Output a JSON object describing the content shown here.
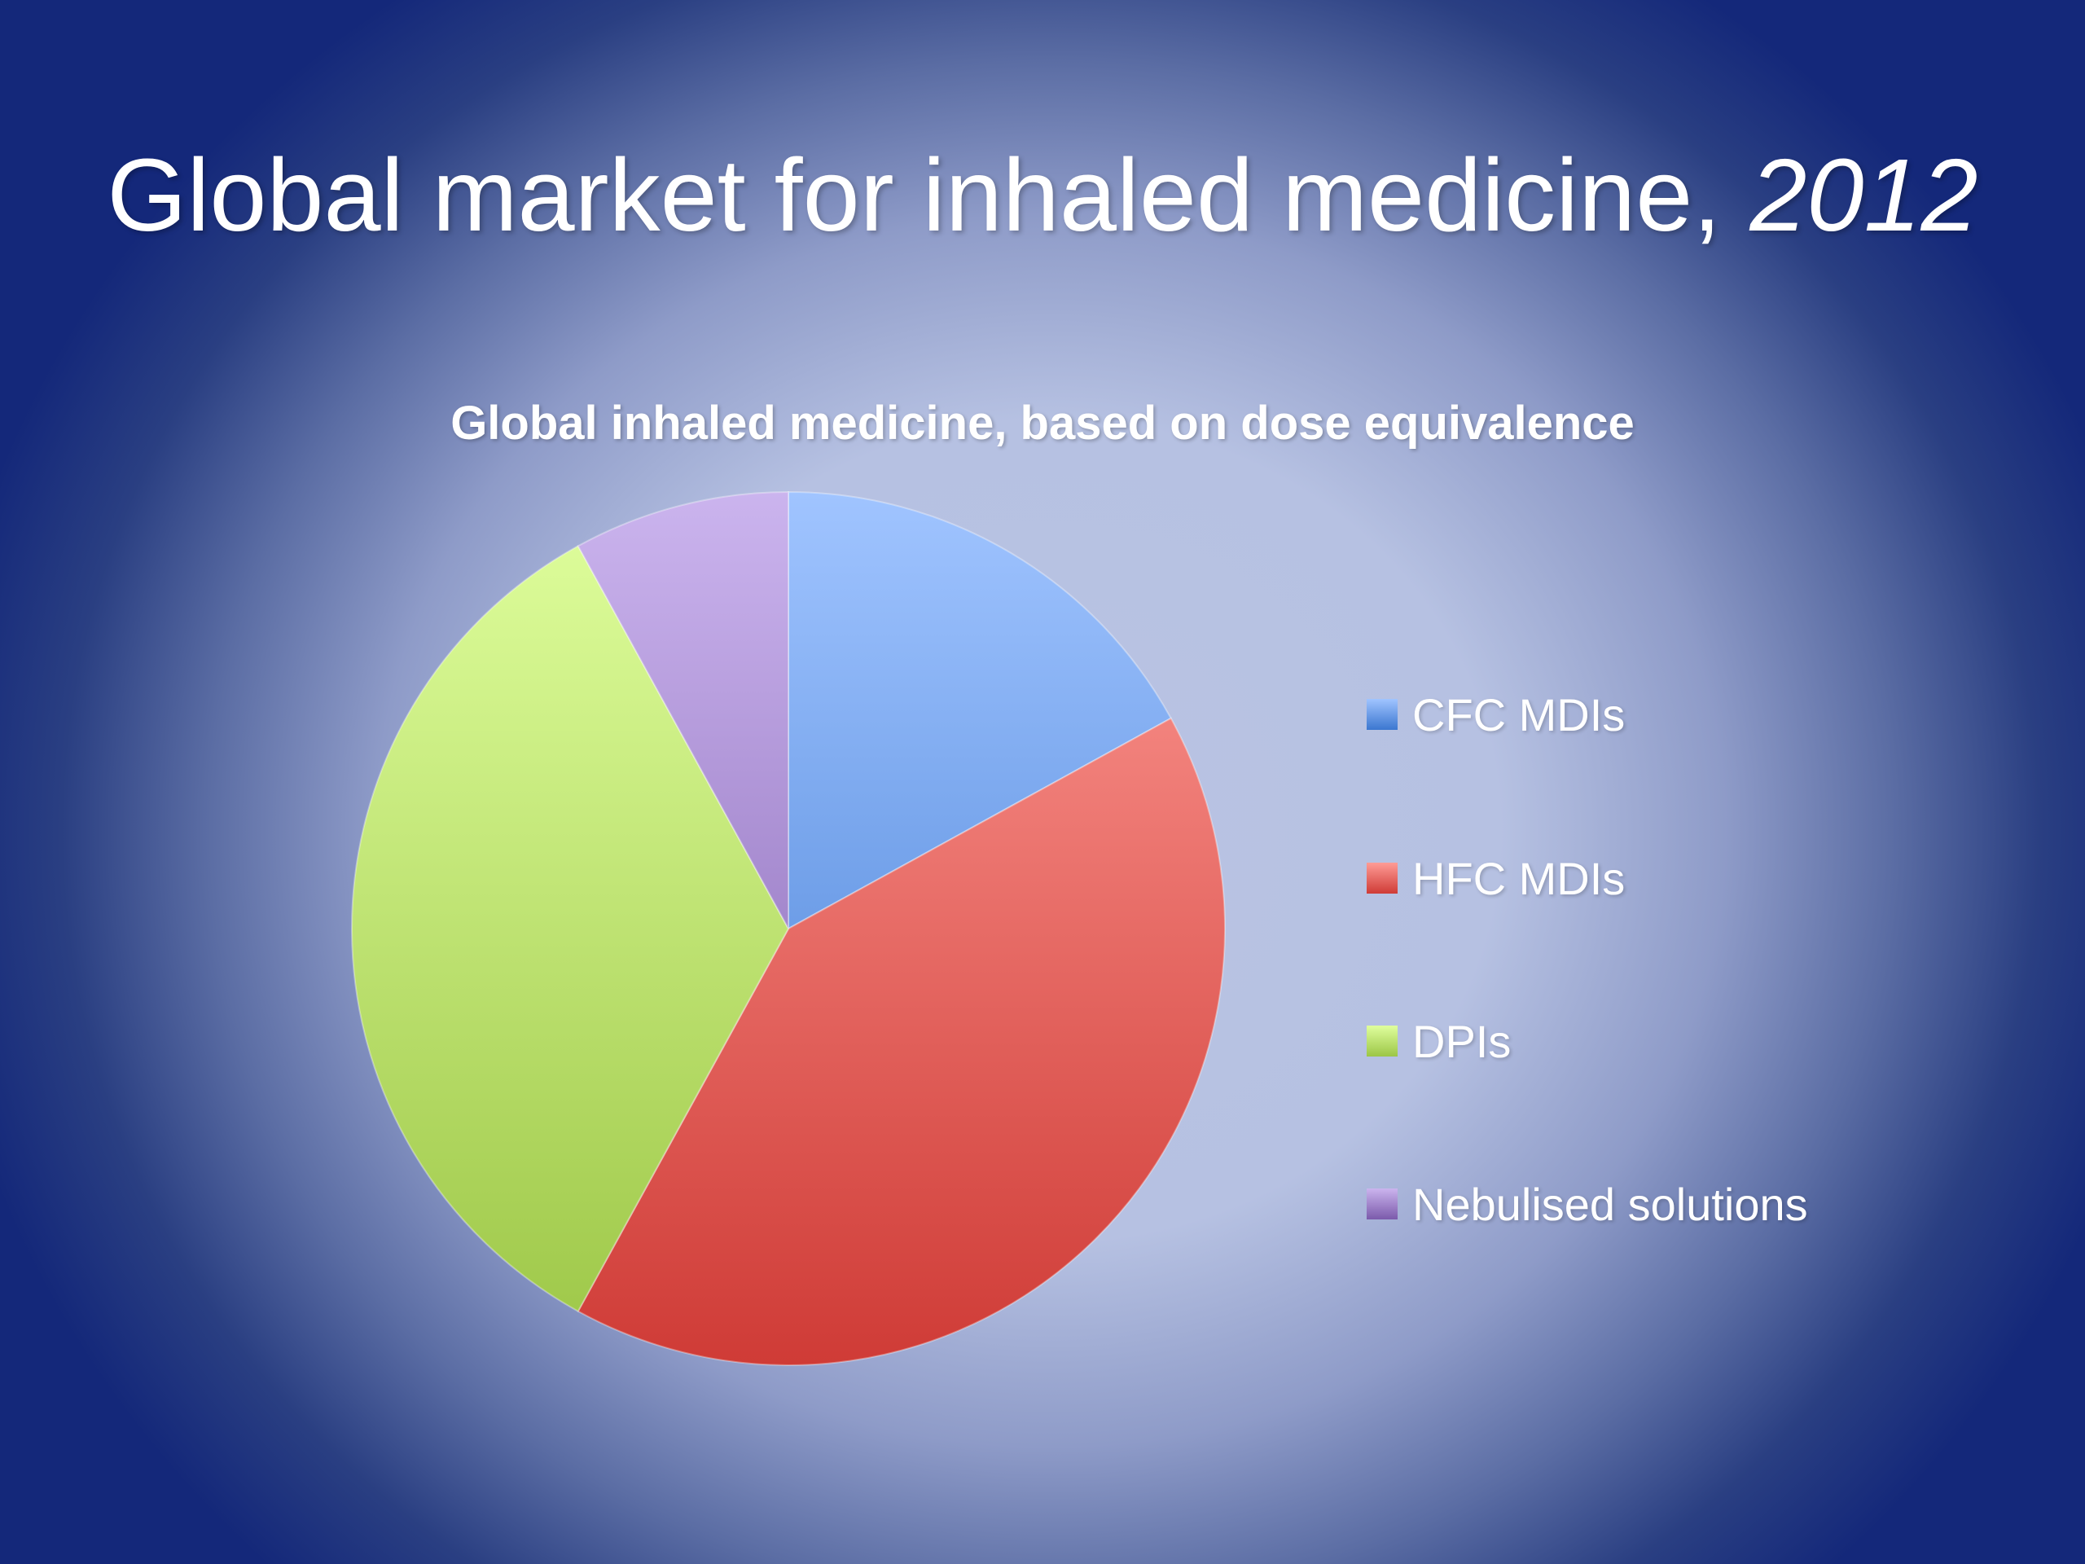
{
  "slide": {
    "title_main": "Global market for inhaled medicine, ",
    "title_year": "2012"
  },
  "chart_data": {
    "type": "pie",
    "title": "Global inhaled medicine, based on dose equivalence",
    "categories": [
      "CFC MDIs",
      "HFC MDIs",
      "DPIs",
      "Nebulised solutions"
    ],
    "values": [
      17,
      41,
      34,
      8
    ],
    "unit": "%",
    "legend": "right",
    "colors": [
      "#5b8fde",
      "#e5605a",
      "#b6de70",
      "#a07cc9"
    ],
    "colors_light": [
      "#a0c4ff",
      "#ff9c96",
      "#e0ff9e",
      "#cbb4ee"
    ],
    "colors_dark": [
      "#3b77d0",
      "#cf3b36",
      "#9cc646",
      "#7b5aab"
    ]
  }
}
